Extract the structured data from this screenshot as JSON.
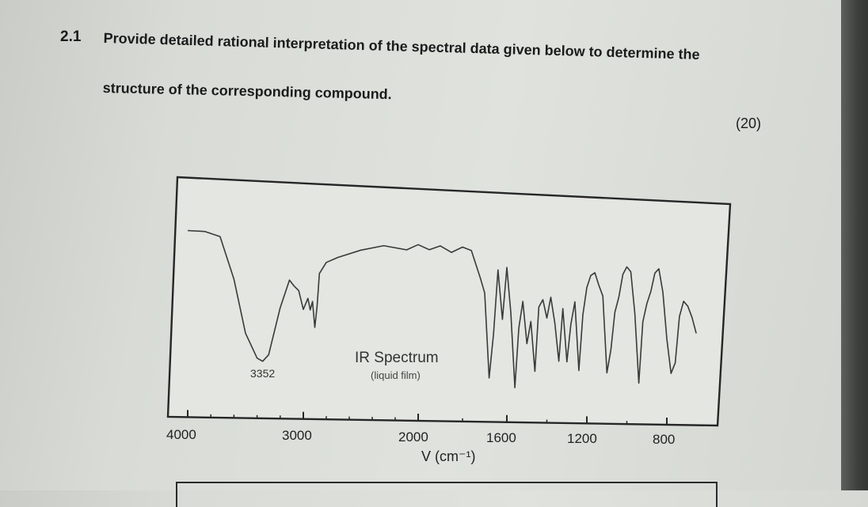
{
  "question": {
    "number": "2.1",
    "line1": "Provide detailed rational interpretation of the spectral data given below to determine the",
    "line2": "structure of the corresponding compound.",
    "marks": "(20)"
  },
  "chart_data": {
    "type": "line",
    "title": "IR Spectrum",
    "subtitle": "(liquid film)",
    "xlabel": "V (cm⁻¹)",
    "x_axis": "reversed",
    "xlim": [
      4000,
      600
    ],
    "ylim": [
      0,
      100
    ],
    "x_ticks": [
      4000,
      3000,
      2000,
      1600,
      1200,
      800
    ],
    "annotations": [
      {
        "text": "3352",
        "x": 3352
      }
    ],
    "series": [
      {
        "x": [
          4000,
          3850,
          3720,
          3600,
          3500,
          3400,
          3352,
          3300,
          3200,
          3120,
          3080,
          3040,
          3000,
          2960,
          2940,
          2920,
          2900,
          2880,
          2860,
          2800,
          2700,
          2500,
          2300,
          2100,
          2000,
          1950,
          1900,
          1850,
          1800,
          1760,
          1720,
          1700,
          1680,
          1660,
          1640,
          1620,
          1600,
          1580,
          1560,
          1540,
          1520,
          1500,
          1480,
          1460,
          1440,
          1420,
          1400,
          1380,
          1360,
          1340,
          1320,
          1300,
          1280,
          1260,
          1240,
          1220,
          1200,
          1180,
          1160,
          1140,
          1120,
          1100,
          1080,
          1060,
          1040,
          1020,
          1000,
          980,
          960,
          940,
          920,
          900,
          880,
          860,
          840,
          820,
          800,
          780,
          760,
          740,
          720,
          700,
          680,
          660
        ],
        "y": [
          93,
          93,
          90,
          60,
          22,
          5,
          3,
          8,
          42,
          62,
          58,
          55,
          42,
          50,
          42,
          48,
          30,
          45,
          68,
          76,
          80,
          86,
          90,
          88,
          92,
          89,
          92,
          88,
          92,
          90,
          72,
          62,
          5,
          35,
          78,
          45,
          80,
          50,
          0,
          40,
          58,
          30,
          45,
          12,
          55,
          60,
          48,
          62,
          45,
          20,
          55,
          20,
          45,
          60,
          15,
          52,
          70,
          78,
          80,
          72,
          65,
          15,
          30,
          55,
          65,
          80,
          85,
          82,
          55,
          10,
          50,
          62,
          70,
          82,
          85,
          70,
          40,
          18,
          25,
          55,
          65,
          62,
          55,
          45
        ]
      }
    ]
  }
}
